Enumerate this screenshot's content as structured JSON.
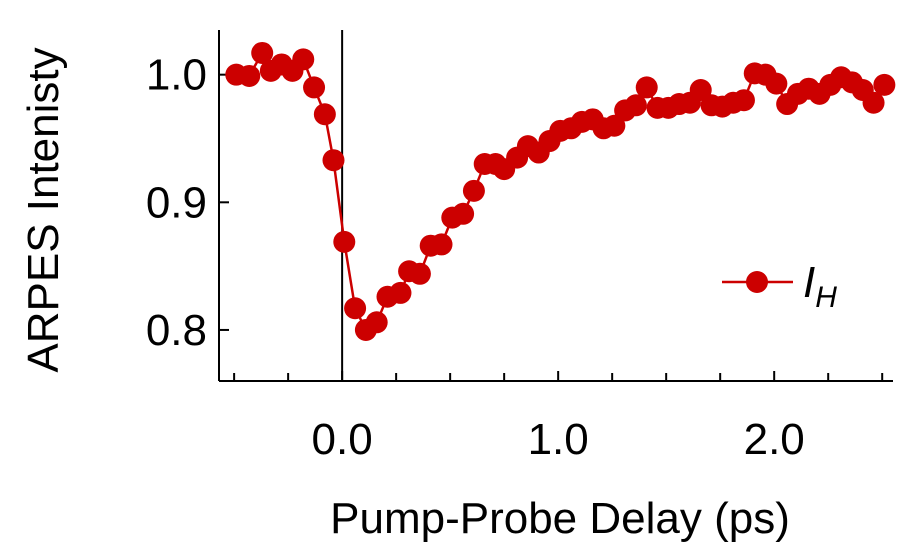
{
  "chart_data": {
    "type": "line",
    "title": "",
    "xlabel": "Pump-Probe Delay (ps)",
    "ylabel": "ARPES Intenisty",
    "xlim": [
      -0.57,
      2.55
    ],
    "ylim": [
      0.76,
      1.035
    ],
    "x_ticks_major": [
      0.0,
      1.0,
      2.0
    ],
    "x_tick_labels": [
      "0.0",
      "1.0",
      "2.0"
    ],
    "x_ticks_minor": [
      -0.5,
      -0.25,
      0.25,
      0.5,
      0.75,
      1.25,
      1.5,
      1.75,
      2.25,
      2.5
    ],
    "y_ticks": [
      0.8,
      0.9,
      1.0
    ],
    "y_tick_labels": [
      "0.8",
      "0.9",
      "1.0"
    ],
    "vertical_line_x": 0.0,
    "grid": false,
    "legend_position": "right",
    "color": "#cc0000",
    "series": [
      {
        "name": "I",
        "name_subscript": "H",
        "x": [
          -0.49,
          -0.43,
          -0.37,
          -0.33,
          -0.28,
          -0.23,
          -0.18,
          -0.13,
          -0.08,
          -0.04,
          0.01,
          0.06,
          0.11,
          0.16,
          0.21,
          0.27,
          0.31,
          0.36,
          0.41,
          0.46,
          0.51,
          0.56,
          0.61,
          0.66,
          0.71,
          0.75,
          0.81,
          0.86,
          0.91,
          0.96,
          1.01,
          1.06,
          1.11,
          1.16,
          1.21,
          1.26,
          1.31,
          1.36,
          1.41,
          1.46,
          1.51,
          1.56,
          1.61,
          1.66,
          1.71,
          1.76,
          1.81,
          1.86,
          1.91,
          1.96,
          2.01,
          2.06,
          2.11,
          2.16,
          2.21,
          2.26,
          2.31,
          2.36,
          2.41,
          2.46,
          2.51
        ],
        "y": [
          1.0,
          0.999,
          1.017,
          1.003,
          1.008,
          1.003,
          1.012,
          0.99,
          0.969,
          0.933,
          0.869,
          0.817,
          0.8,
          0.806,
          0.826,
          0.829,
          0.846,
          0.844,
          0.866,
          0.867,
          0.888,
          0.891,
          0.909,
          0.93,
          0.93,
          0.926,
          0.935,
          0.944,
          0.939,
          0.948,
          0.956,
          0.958,
          0.963,
          0.965,
          0.958,
          0.96,
          0.972,
          0.976,
          0.99,
          0.974,
          0.974,
          0.977,
          0.978,
          0.988,
          0.976,
          0.975,
          0.978,
          0.98,
          1.001,
          1.0,
          0.993,
          0.977,
          0.985,
          0.989,
          0.985,
          0.992,
          0.998,
          0.994,
          0.988,
          0.978,
          0.992
        ]
      }
    ]
  }
}
